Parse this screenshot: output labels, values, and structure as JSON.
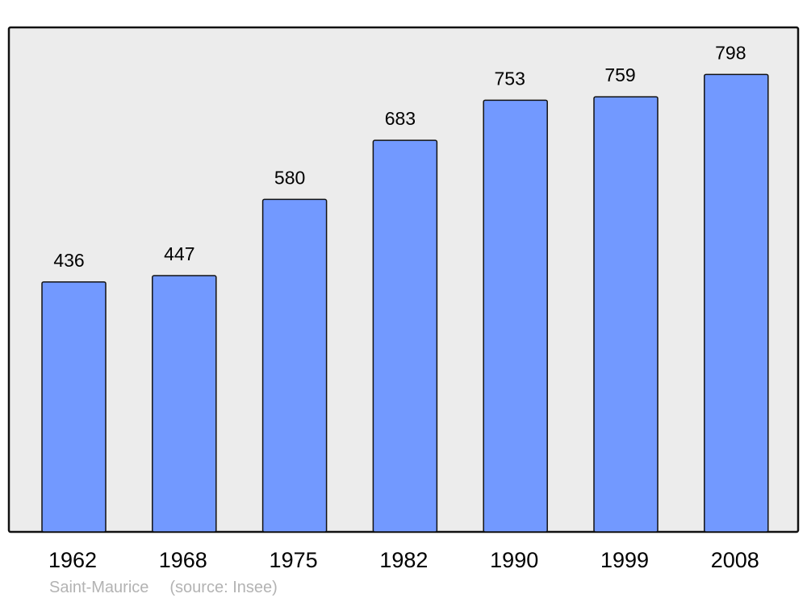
{
  "chart_data": {
    "type": "bar",
    "categories": [
      "1962",
      "1968",
      "1975",
      "1982",
      "1990",
      "1999",
      "2008"
    ],
    "values": [
      436,
      447,
      580,
      683,
      753,
      759,
      798
    ],
    "title": "",
    "xlabel": "",
    "ylabel": "",
    "ylim": [
      0,
      880
    ],
    "grid": false,
    "bar_color": "#7299ff",
    "background_color": "#ececec",
    "data_labels": true
  },
  "footer": {
    "place": "Saint-Maurice",
    "source": "(source: Insee)"
  }
}
